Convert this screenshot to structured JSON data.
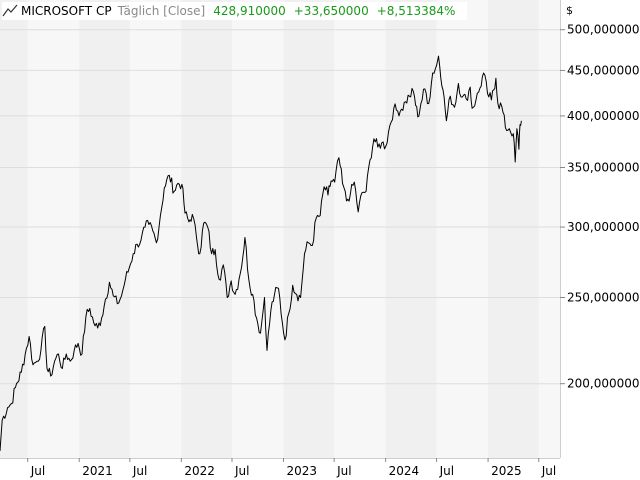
{
  "legend": {
    "instrument": "MICROSOFT CP",
    "mode": "Täglich [Close]",
    "last": "428,910000",
    "change": "+33,650000",
    "change_pct": "+8,513384%"
  },
  "colors": {
    "up": "#1a9a1a",
    "line": "#000000",
    "shade": "#f0f0f0",
    "plot": "#f7f7f7",
    "grid": "#dedede"
  },
  "icons": {
    "legend": "line-chart-icon"
  },
  "chart_data": {
    "type": "line",
    "scale": "log",
    "grid": true,
    "legend_position": "top-left",
    "currency_label": "$",
    "y_ticks": [
      200,
      250,
      300,
      350,
      400,
      450,
      500
    ],
    "y_tick_labels": [
      "200,000000",
      "250,000000",
      "300,000000",
      "350,000000",
      "400,000000",
      "450,000000",
      "500,000000"
    ],
    "ylim": [
      165,
      540
    ],
    "xlim": [
      "2020-03-24",
      "2025-09-15"
    ],
    "x_ticks": [
      {
        "date": "2020-07-01",
        "label": "Jul"
      },
      {
        "date": "2021-01-01",
        "label": "2021"
      },
      {
        "date": "2021-07-01",
        "label": "Jul"
      },
      {
        "date": "2022-01-01",
        "label": "2022"
      },
      {
        "date": "2022-07-01",
        "label": "Jul"
      },
      {
        "date": "2023-01-01",
        "label": "2023"
      },
      {
        "date": "2023-07-01",
        "label": "Jul"
      },
      {
        "date": "2024-01-01",
        "label": "2024"
      },
      {
        "date": "2024-07-01",
        "label": "Jul"
      },
      {
        "date": "2025-01-01",
        "label": "2025"
      },
      {
        "date": "2025-07-01",
        "label": "Jul"
      }
    ],
    "series": [
      {
        "values": [
          [
            "2020-03-24",
            168
          ],
          [
            "2020-04-01",
            182
          ],
          [
            "2020-04-20",
            188
          ],
          [
            "2020-05-04",
            190
          ],
          [
            "2020-05-18",
            198
          ],
          [
            "2020-06-08",
            206
          ],
          [
            "2020-06-22",
            216
          ],
          [
            "2020-07-06",
            226
          ],
          [
            "2020-07-20",
            210
          ],
          [
            "2020-08-03",
            212
          ],
          [
            "2020-08-17",
            218
          ],
          [
            "2020-08-31",
            232
          ],
          [
            "2020-09-08",
            208
          ],
          [
            "2020-09-21",
            204
          ],
          [
            "2020-10-05",
            212
          ],
          [
            "2020-10-19",
            216
          ],
          [
            "2020-11-02",
            208
          ],
          [
            "2020-11-16",
            216
          ],
          [
            "2020-11-30",
            212
          ],
          [
            "2020-12-14",
            218
          ],
          [
            "2020-12-28",
            222
          ],
          [
            "2021-01-11",
            216
          ],
          [
            "2021-01-25",
            238
          ],
          [
            "2021-02-08",
            243
          ],
          [
            "2021-02-22",
            234
          ],
          [
            "2021-03-08",
            231
          ],
          [
            "2021-03-22",
            237
          ],
          [
            "2021-04-05",
            249
          ],
          [
            "2021-04-19",
            260
          ],
          [
            "2021-05-03",
            251
          ],
          [
            "2021-05-17",
            246
          ],
          [
            "2021-06-01",
            251
          ],
          [
            "2021-06-15",
            262
          ],
          [
            "2021-06-29",
            270
          ],
          [
            "2021-07-13",
            280
          ],
          [
            "2021-07-27",
            287
          ],
          [
            "2021-08-10",
            290
          ],
          [
            "2021-08-24",
            300
          ],
          [
            "2021-09-07",
            302
          ],
          [
            "2021-09-21",
            297
          ],
          [
            "2021-10-04",
            288
          ],
          [
            "2021-10-18",
            309
          ],
          [
            "2021-11-01",
            332
          ],
          [
            "2021-11-19",
            343
          ],
          [
            "2021-12-06",
            329
          ],
          [
            "2021-12-20",
            336
          ],
          [
            "2022-01-03",
            335
          ],
          [
            "2022-01-14",
            311
          ],
          [
            "2022-01-28",
            304
          ],
          [
            "2022-02-09",
            310
          ],
          [
            "2022-02-24",
            292
          ],
          [
            "2022-03-08",
            280
          ],
          [
            "2022-03-22",
            303
          ],
          [
            "2022-04-05",
            300
          ],
          [
            "2022-04-19",
            280
          ],
          [
            "2022-05-02",
            283
          ],
          [
            "2022-05-16",
            262
          ],
          [
            "2022-05-31",
            272
          ],
          [
            "2022-06-14",
            250
          ],
          [
            "2022-06-28",
            261
          ],
          [
            "2022-07-12",
            252
          ],
          [
            "2022-07-26",
            262
          ],
          [
            "2022-08-09",
            278
          ],
          [
            "2022-08-16",
            292
          ],
          [
            "2022-08-30",
            262
          ],
          [
            "2022-09-13",
            252
          ],
          [
            "2022-09-27",
            237
          ],
          [
            "2022-10-11",
            228
          ],
          [
            "2022-10-25",
            250
          ],
          [
            "2022-11-03",
            218
          ],
          [
            "2022-11-17",
            242
          ],
          [
            "2022-11-30",
            252
          ],
          [
            "2022-12-14",
            256
          ],
          [
            "2022-12-28",
            234
          ],
          [
            "2023-01-06",
            224
          ],
          [
            "2023-01-20",
            240
          ],
          [
            "2023-02-03",
            258
          ],
          [
            "2023-02-17",
            252
          ],
          [
            "2023-03-03",
            250
          ],
          [
            "2023-03-17",
            280
          ],
          [
            "2023-03-31",
            288
          ],
          [
            "2023-04-14",
            286
          ],
          [
            "2023-04-28",
            307
          ],
          [
            "2023-05-12",
            309
          ],
          [
            "2023-05-26",
            333
          ],
          [
            "2023-06-09",
            326
          ],
          [
            "2023-06-20",
            338
          ],
          [
            "2023-07-03",
            337
          ],
          [
            "2023-07-18",
            359
          ],
          [
            "2023-07-31",
            336
          ],
          [
            "2023-08-14",
            321
          ],
          [
            "2023-08-28",
            327
          ],
          [
            "2023-09-11",
            337
          ],
          [
            "2023-09-25",
            312
          ],
          [
            "2023-10-09",
            328
          ],
          [
            "2023-10-23",
            329
          ],
          [
            "2023-11-06",
            357
          ],
          [
            "2023-11-20",
            377
          ],
          [
            "2023-12-04",
            369
          ],
          [
            "2023-12-18",
            373
          ],
          [
            "2024-01-02",
            370
          ],
          [
            "2024-01-16",
            390
          ],
          [
            "2024-01-30",
            408
          ],
          [
            "2024-02-13",
            405
          ],
          [
            "2024-02-27",
            407
          ],
          [
            "2024-03-12",
            415
          ],
          [
            "2024-03-26",
            421
          ],
          [
            "2024-04-09",
            426
          ],
          [
            "2024-04-25",
            399
          ],
          [
            "2024-05-06",
            413
          ],
          [
            "2024-05-20",
            429
          ],
          [
            "2024-06-03",
            413
          ],
          [
            "2024-06-17",
            447
          ],
          [
            "2024-07-01",
            456
          ],
          [
            "2024-07-08",
            467
          ],
          [
            "2024-07-24",
            428
          ],
          [
            "2024-08-05",
            395
          ],
          [
            "2024-08-19",
            421
          ],
          [
            "2024-09-03",
            409
          ],
          [
            "2024-09-17",
            435
          ],
          [
            "2024-10-01",
            420
          ],
          [
            "2024-10-15",
            418
          ],
          [
            "2024-10-29",
            431
          ],
          [
            "2024-11-05",
            408
          ],
          [
            "2024-11-19",
            417
          ],
          [
            "2024-12-03",
            430
          ],
          [
            "2024-12-16",
            447
          ],
          [
            "2024-12-30",
            424
          ],
          [
            "2025-01-13",
            417
          ],
          [
            "2025-01-29",
            441
          ],
          [
            "2025-02-05",
            413
          ],
          [
            "2025-02-19",
            410
          ],
          [
            "2025-03-04",
            388
          ],
          [
            "2025-03-18",
            387
          ],
          [
            "2025-04-01",
            382
          ],
          [
            "2025-04-08",
            355
          ],
          [
            "2025-04-14",
            387
          ],
          [
            "2025-04-21",
            367
          ],
          [
            "2025-04-25",
            391
          ],
          [
            "2025-04-30",
            395
          ]
        ]
      }
    ]
  }
}
